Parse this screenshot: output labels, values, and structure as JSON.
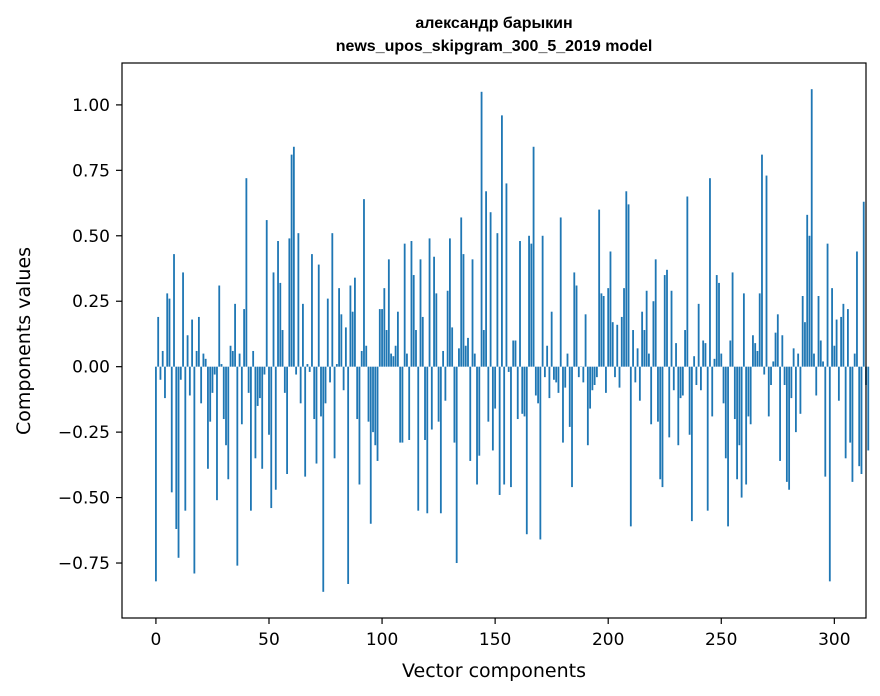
{
  "chart_data": {
    "type": "bar",
    "title": "александр барыкин",
    "subtitle": "news_upos_skipgram_300_5_2019 model",
    "xlabel": "Vector components",
    "ylabel": "Components values",
    "xlim": [
      -15,
      314
    ],
    "ylim": [
      -0.96,
      1.16
    ],
    "xticks": [
      0,
      50,
      100,
      150,
      200,
      250,
      300
    ],
    "xtick_labels": [
      "0",
      "50",
      "100",
      "150",
      "200",
      "250",
      "300"
    ],
    "yticks": [
      -0.75,
      -0.5,
      -0.25,
      0.0,
      0.25,
      0.5,
      0.75,
      1.0
    ],
    "ytick_labels": [
      "−0.75",
      "−0.50",
      "−0.25",
      "0.00",
      "0.25",
      "0.50",
      "0.75",
      "1.00"
    ],
    "bar_color": "#1f77b4",
    "grid": false,
    "values": [
      -0.82,
      0.19,
      -0.05,
      0.06,
      -0.12,
      0.28,
      0.26,
      -0.48,
      0.43,
      -0.62,
      -0.73,
      -0.05,
      0.36,
      -0.55,
      0.12,
      -0.11,
      0.18,
      -0.79,
      0.06,
      0.19,
      -0.14,
      0.05,
      0.03,
      -0.39,
      -0.21,
      -0.1,
      -0.03,
      -0.51,
      0.31,
      0.01,
      -0.2,
      -0.3,
      -0.43,
      0.08,
      0.06,
      0.24,
      -0.76,
      0.05,
      -0.22,
      0.22,
      0.72,
      -0.1,
      -0.55,
      0.06,
      -0.35,
      -0.15,
      -0.12,
      -0.39,
      -0.03,
      0.56,
      -0.26,
      -0.54,
      0.36,
      -0.47,
      0.48,
      0.32,
      0.14,
      -0.1,
      -0.41,
      0.49,
      0.81,
      0.84,
      -0.03,
      0.51,
      -0.14,
      0.24,
      -0.42,
      0.01,
      -0.02,
      0.43,
      -0.2,
      -0.37,
      0.39,
      -0.19,
      -0.86,
      -0.14,
      0.26,
      -0.06,
      0.51,
      -0.35,
      0.01,
      0.3,
      0.2,
      -0.09,
      0.15,
      -0.83,
      0.31,
      0.21,
      0.34,
      -0.2,
      -0.45,
      0.06,
      0.64,
      0.08,
      -0.21,
      -0.6,
      -0.25,
      -0.3,
      -0.36,
      0.22,
      0.22,
      0.3,
      0.14,
      0.41,
      0.05,
      0.04,
      0.08,
      0.21,
      -0.29,
      -0.29,
      0.47,
      0.05,
      -0.28,
      0.48,
      0.35,
      0.14,
      -0.55,
      0.41,
      0.19,
      -0.28,
      -0.56,
      0.49,
      -0.24,
      0.42,
      0.28,
      -0.21,
      -0.56,
      0.06,
      -0.13,
      0.29,
      0.49,
      0.15,
      -0.29,
      -0.75,
      0.07,
      0.57,
      0.43,
      0.08,
      0.11,
      -0.36,
      0.41,
      0.05,
      -0.45,
      -0.34,
      1.05,
      0.14,
      0.67,
      -0.21,
      0.59,
      -0.32,
      -0.16,
      0.51,
      -0.49,
      0.96,
      -0.45,
      0.7,
      -0.02,
      -0.46,
      0.1,
      0.1,
      -0.2,
      0.48,
      -0.18,
      -0.19,
      -0.64,
      0.5,
      0.47,
      0.84,
      -0.11,
      -0.14,
      -0.66,
      0.5,
      -0.04,
      0.08,
      -0.12,
      0.21,
      -0.05,
      -0.06,
      -0.1,
      0.57,
      -0.29,
      -0.08,
      0.05,
      -0.23,
      -0.46,
      0.36,
      0.31,
      -0.04,
      0.0,
      -0.06,
      0.2,
      -0.3,
      -0.16,
      -0.09,
      -0.07,
      -0.04,
      0.6,
      0.28,
      0.27,
      -0.1,
      0.3,
      0.44,
      0.17,
      -0.04,
      0.16,
      -0.08,
      0.19,
      0.3,
      0.67,
      0.62,
      -0.61,
      0.14,
      -0.06,
      0.07,
      -0.13,
      0.21,
      0.14,
      0.29,
      0.05,
      -0.22,
      0.25,
      0.41,
      -0.21,
      -0.43,
      -0.46,
      0.35,
      0.37,
      -0.27,
      0.29,
      -0.09,
      0.09,
      -0.3,
      -0.12,
      -0.11,
      0.14,
      0.65,
      -0.26,
      -0.59,
      0.04,
      -0.07,
      0.24,
      -0.09,
      0.1,
      0.09,
      -0.55,
      0.72,
      -0.19,
      0.03,
      0.35,
      0.32,
      0.05,
      -0.14,
      -0.35,
      -0.61,
      0.1,
      0.36,
      -0.2,
      -0.43,
      -0.3,
      -0.5,
      0.28,
      -0.45,
      -0.19,
      -0.22,
      0.12,
      0.09,
      0.06,
      0.28,
      0.81,
      -0.03,
      0.73,
      -0.19,
      -0.07,
      0.02,
      0.13,
      0.2,
      -0.36,
      0.12,
      -0.07,
      -0.44,
      -0.47,
      -0.12,
      0.07,
      -0.25,
      0.05,
      -0.18,
      0.27,
      0.17,
      0.58,
      0.5,
      1.06,
      0.05,
      -0.11,
      0.27,
      0.1,
      0.02,
      -0.42,
      0.47,
      -0.82,
      0.3,
      0.08,
      0.18,
      -0.13,
      0.19,
      0.24,
      -0.35,
      0.22,
      -0.29,
      -0.44,
      0.05,
      0.44,
      -0.38,
      -0.41,
      0.63,
      -0.07,
      -0.32
    ]
  }
}
